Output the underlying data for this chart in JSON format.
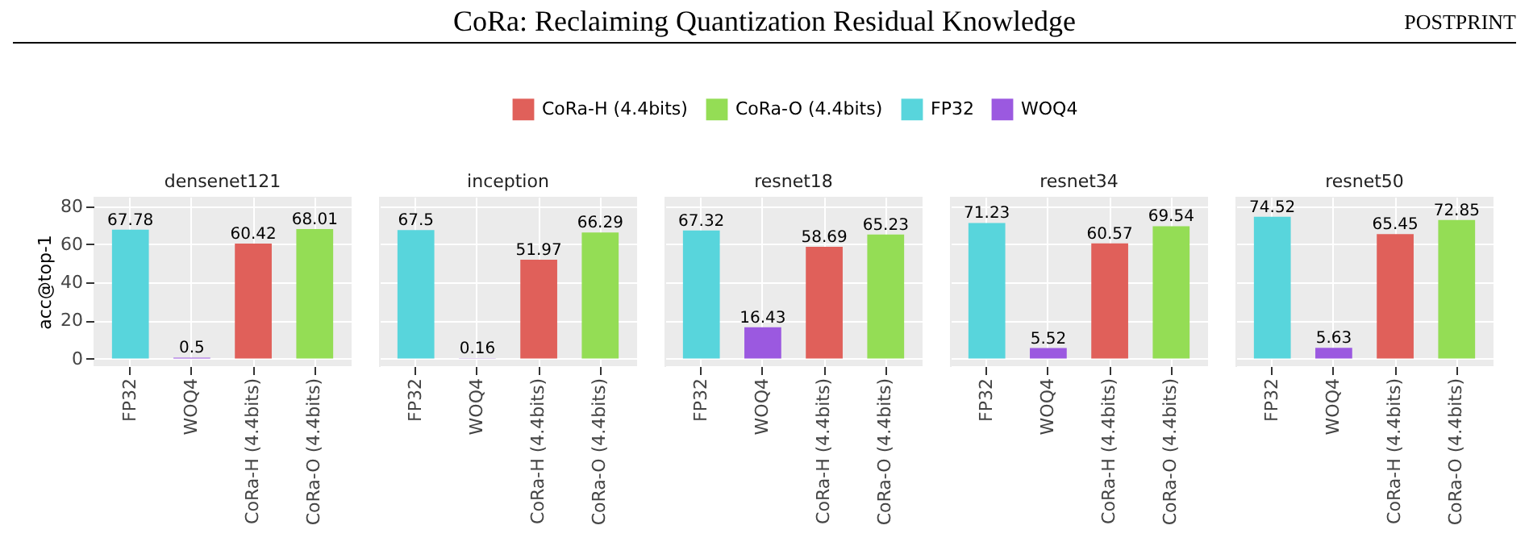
{
  "chart_data": [
    {
      "type": "bar",
      "title": "densenet121",
      "ylabel": "acc@top-1",
      "categories": [
        "FP32",
        "WOQ4",
        "CoRa-H (4.4bits)",
        "CoRa-O (4.4bits)"
      ],
      "ylim": [
        -4,
        85
      ],
      "yticks": [
        0,
        20,
        40,
        60,
        80
      ],
      "grid": true,
      "data_labels": true,
      "series": [
        {
          "color": "#e0605a",
          "values": [
            null,
            null,
            60.42,
            null
          ]
        },
        {
          "color": "#94dd55",
          "values": [
            null,
            null,
            null,
            68.01
          ]
        },
        {
          "color": "#58d5dc",
          "values": [
            67.78,
            null,
            null,
            null
          ]
        },
        {
          "color": "#9b59e0",
          "values": [
            null,
            0.5,
            null,
            null
          ]
        }
      ]
    },
    {
      "type": "bar",
      "title": "inception",
      "categories": [
        "FP32",
        "WOQ4",
        "CoRa-H (4.4bits)",
        "CoRa-O (4.4bits)"
      ],
      "ylim": [
        -4,
        85
      ],
      "yticks": [
        0,
        20,
        40,
        60,
        80
      ],
      "grid": true,
      "tick_labels": "x",
      "data_labels": true,
      "series": [
        {
          "color": "#e0605a",
          "values": [
            null,
            null,
            51.97,
            null
          ]
        },
        {
          "color": "#94dd55",
          "values": [
            null,
            null,
            null,
            66.29
          ]
        },
        {
          "color": "#58d5dc",
          "values": [
            67.5,
            null,
            null,
            null
          ]
        },
        {
          "color": "#9b59e0",
          "values": [
            null,
            0.16,
            null,
            null
          ]
        }
      ]
    },
    {
      "type": "bar",
      "title": "resnet18",
      "categories": [
        "FP32",
        "WOQ4",
        "CoRa-H (4.4bits)",
        "CoRa-O (4.4bits)"
      ],
      "ylim": [
        -4,
        85
      ],
      "yticks": [
        0,
        20,
        40,
        60,
        80
      ],
      "grid": true,
      "tick_labels": "x",
      "legend": "top",
      "data_labels": true,
      "series": [
        {
          "name": "CoRa-H (4.4bits)",
          "color": "#e0605a",
          "values": [
            null,
            null,
            58.69,
            null
          ]
        },
        {
          "name": "CoRa-O (4.4bits)",
          "color": "#94dd55",
          "values": [
            null,
            null,
            null,
            65.23
          ]
        },
        {
          "name": "FP32",
          "color": "#58d5dc",
          "values": [
            67.32,
            null,
            null,
            null
          ]
        },
        {
          "name": "WOQ4",
          "color": "#9b59e0",
          "values": [
            null,
            16.43,
            null,
            null
          ]
        }
      ]
    },
    {
      "type": "bar",
      "title": "resnet34",
      "categories": [
        "FP32",
        "WOQ4",
        "CoRa-H (4.4bits)",
        "CoRa-O (4.4bits)"
      ],
      "ylim": [
        -4,
        85
      ],
      "yticks": [
        0,
        20,
        40,
        60,
        80
      ],
      "grid": true,
      "tick_labels": "x",
      "data_labels": true,
      "series": [
        {
          "color": "#e0605a",
          "values": [
            null,
            null,
            60.57,
            null
          ]
        },
        {
          "color": "#94dd55",
          "values": [
            null,
            null,
            null,
            69.54
          ]
        },
        {
          "color": "#58d5dc",
          "values": [
            71.23,
            null,
            null,
            null
          ]
        },
        {
          "color": "#9b59e0",
          "values": [
            null,
            5.52,
            null,
            null
          ]
        }
      ]
    },
    {
      "type": "bar",
      "title": "resnet50",
      "categories": [
        "FP32",
        "WOQ4",
        "CoRa-H (4.4bits)",
        "CoRa-O (4.4bits)"
      ],
      "ylim": [
        -4,
        85
      ],
      "yticks": [
        0,
        20,
        40,
        60,
        80
      ],
      "grid": true,
      "tick_labels": "x",
      "data_labels": true,
      "annotations": [
        "CoRa: Reclaiming Quantization Residual Knowledge",
        "POSTPRINT"
      ],
      "series": [
        {
          "color": "#e0605a",
          "values": [
            null,
            null,
            65.45,
            null
          ]
        },
        {
          "color": "#94dd55",
          "values": [
            null,
            null,
            null,
            72.85
          ]
        },
        {
          "color": "#58d5dc",
          "values": [
            74.52,
            null,
            null,
            null
          ]
        },
        {
          "color": "#9b59e0",
          "values": [
            null,
            5.63,
            null,
            null
          ]
        }
      ]
    }
  ]
}
